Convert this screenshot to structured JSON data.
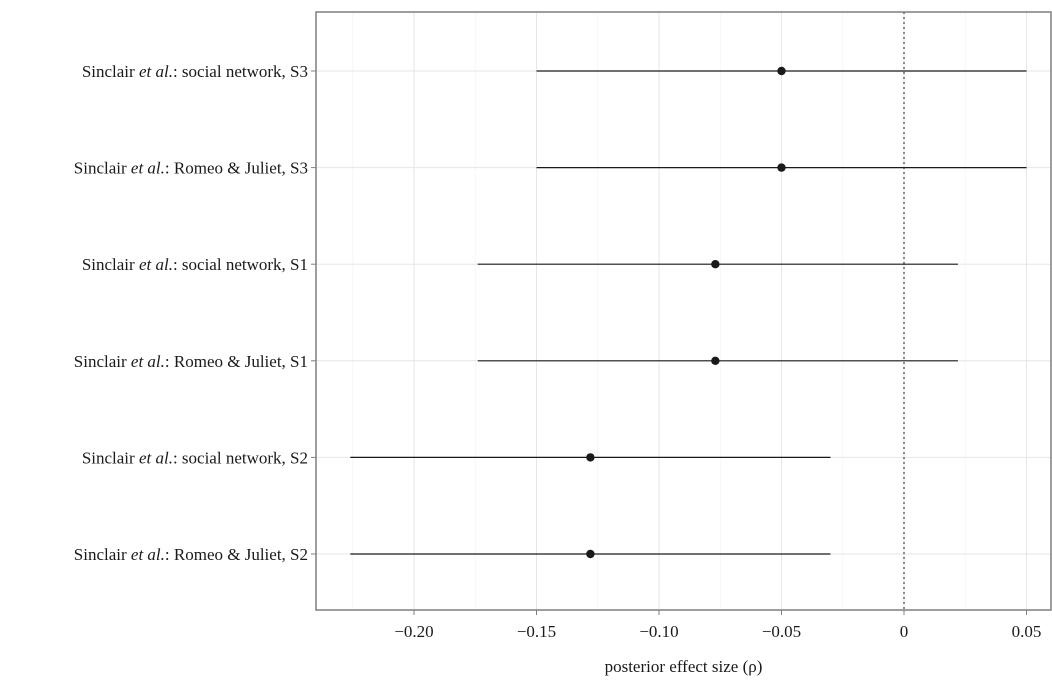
{
  "chart_data": {
    "type": "scatter",
    "subtype": "forest-plot",
    "xlabel": "posterior effect size (ρ)",
    "xlim": [
      -0.24,
      0.06
    ],
    "xticks": [
      -0.2,
      -0.15,
      -0.1,
      -0.05,
      0,
      0.05
    ],
    "xtick_labels": [
      "−0.20",
      "−0.15",
      "−0.10",
      "−0.05",
      "0",
      "0.05"
    ],
    "reference_line": 0,
    "grid": true,
    "rows": [
      {
        "prefix": "Sinclair ",
        "italic": "et al.",
        "suffix": ": social network, S3",
        "estimate": -0.05,
        "lower": -0.15,
        "upper": 0.05
      },
      {
        "prefix": "Sinclair ",
        "italic": "et al.",
        "suffix": ": Romeo & Juliet, S3",
        "estimate": -0.05,
        "lower": -0.15,
        "upper": 0.05
      },
      {
        "prefix": "Sinclair ",
        "italic": "et al.",
        "suffix": ": social network, S1",
        "estimate": -0.077,
        "lower": -0.174,
        "upper": 0.022
      },
      {
        "prefix": "Sinclair ",
        "italic": "et al.",
        "suffix": ": Romeo & Juliet, S1",
        "estimate": -0.077,
        "lower": -0.174,
        "upper": 0.022
      },
      {
        "prefix": "Sinclair ",
        "italic": "et al.",
        "suffix": ": social network, S2",
        "estimate": -0.128,
        "lower": -0.226,
        "upper": -0.03
      },
      {
        "prefix": "Sinclair ",
        "italic": "et al.",
        "suffix": ": Romeo & Juliet, S2",
        "estimate": -0.128,
        "lower": -0.226,
        "upper": -0.03
      }
    ]
  }
}
